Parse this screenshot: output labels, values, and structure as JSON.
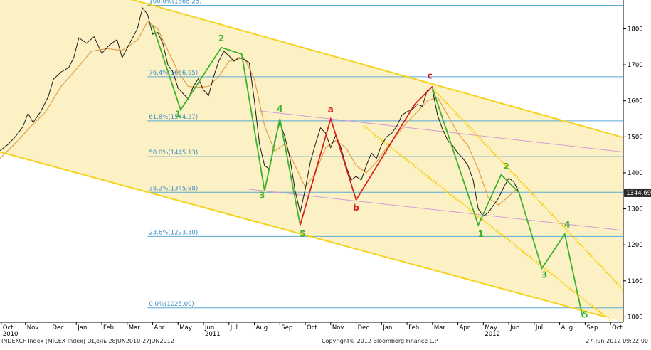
{
  "chart_data": {
    "type": "line",
    "title": "",
    "xlabel": "",
    "ylabel": "",
    "instrument": "INDEXCF Index (MICEX Index)",
    "last_value_label": "1344.69",
    "y_ticks": [
      "1000",
      "1100",
      "1200",
      "1300",
      "1400",
      "1500",
      "1600",
      "1700",
      "1800"
    ],
    "ylim": [
      985,
      1880
    ],
    "xlim": [
      0,
      24.5
    ],
    "x_ticks": [
      {
        "x": 0.05,
        "label": "Oct",
        "year": "2010"
      },
      {
        "x": 1.0,
        "label": "Nov",
        "year": ""
      },
      {
        "x": 2.0,
        "label": "Dec",
        "year": ""
      },
      {
        "x": 3.0,
        "label": "Jan",
        "year": ""
      },
      {
        "x": 4.0,
        "label": "Feb",
        "year": ""
      },
      {
        "x": 5.0,
        "label": "Mar",
        "year": ""
      },
      {
        "x": 6.0,
        "label": "Apr",
        "year": ""
      },
      {
        "x": 7.0,
        "label": "May",
        "year": ""
      },
      {
        "x": 8.0,
        "label": "Jun",
        "year": "2011"
      },
      {
        "x": 9.0,
        "label": "Jul",
        "year": ""
      },
      {
        "x": 10.0,
        "label": "Aug",
        "year": ""
      },
      {
        "x": 11.0,
        "label": "Sep",
        "year": ""
      },
      {
        "x": 12.0,
        "label": "Oct",
        "year": ""
      },
      {
        "x": 13.0,
        "label": "Nov",
        "year": ""
      },
      {
        "x": 14.0,
        "label": "Dec",
        "year": ""
      },
      {
        "x": 15.0,
        "label": "Jan",
        "year": ""
      },
      {
        "x": 16.0,
        "label": "Feb",
        "year": ""
      },
      {
        "x": 17.0,
        "label": "Mar",
        "year": ""
      },
      {
        "x": 18.0,
        "label": "Apr",
        "year": ""
      },
      {
        "x": 19.0,
        "label": "May",
        "year": "2012"
      },
      {
        "x": 20.0,
        "label": "Jun",
        "year": ""
      },
      {
        "x": 21.0,
        "label": "Jul",
        "year": ""
      },
      {
        "x": 22.0,
        "label": "Aug",
        "year": ""
      },
      {
        "x": 23.0,
        "label": "Sep",
        "year": ""
      },
      {
        "x": 24.0,
        "label": "Oct",
        "year": ""
      }
    ],
    "fib_levels": [
      {
        "label": "100.0%(1865.25)",
        "value": 1865.25
      },
      {
        "label": "76.4%(1666.95)",
        "value": 1666.95
      },
      {
        "label": "61.8%(1544.27)",
        "value": 1544.27
      },
      {
        "label": "50.0%(1445.13)",
        "value": 1445.13
      },
      {
        "label": "38.2%(1345.98)",
        "value": 1345.98
      },
      {
        "label": "23.6%(1223.30)",
        "value": 1223.3
      },
      {
        "label": "0.0%(1025.00)",
        "value": 1025.0
      }
    ],
    "fib_label_x": 5.8,
    "price_series": [
      [
        0.0,
        1462
      ],
      [
        0.3,
        1478
      ],
      [
        0.6,
        1500
      ],
      [
        0.9,
        1528
      ],
      [
        1.1,
        1565
      ],
      [
        1.3,
        1540
      ],
      [
        1.6,
        1570
      ],
      [
        1.9,
        1612
      ],
      [
        2.1,
        1660
      ],
      [
        2.4,
        1680
      ],
      [
        2.7,
        1692
      ],
      [
        2.9,
        1720
      ],
      [
        3.1,
        1775
      ],
      [
        3.4,
        1760
      ],
      [
        3.7,
        1778
      ],
      [
        4.0,
        1732
      ],
      [
        4.3,
        1755
      ],
      [
        4.6,
        1770
      ],
      [
        4.8,
        1720
      ],
      [
        5.1,
        1760
      ],
      [
        5.4,
        1800
      ],
      [
        5.6,
        1858
      ],
      [
        5.8,
        1840
      ],
      [
        6.0,
        1785
      ],
      [
        6.2,
        1790
      ],
      [
        6.4,
        1760
      ],
      [
        6.6,
        1700
      ],
      [
        6.8,
        1680
      ],
      [
        7.0,
        1635
      ],
      [
        7.2,
        1620
      ],
      [
        7.4,
        1605
      ],
      [
        7.6,
        1640
      ],
      [
        7.8,
        1662
      ],
      [
        8.0,
        1630
      ],
      [
        8.2,
        1615
      ],
      [
        8.4,
        1668
      ],
      [
        8.6,
        1710
      ],
      [
        8.8,
        1738
      ],
      [
        9.0,
        1725
      ],
      [
        9.2,
        1710
      ],
      [
        9.4,
        1720
      ],
      [
        9.6,
        1715
      ],
      [
        9.8,
        1705
      ],
      [
        10.0,
        1600
      ],
      [
        10.2,
        1480
      ],
      [
        10.4,
        1420
      ],
      [
        10.6,
        1410
      ],
      [
        10.8,
        1490
      ],
      [
        11.0,
        1540
      ],
      [
        11.2,
        1500
      ],
      [
        11.4,
        1440
      ],
      [
        11.6,
        1350
      ],
      [
        11.8,
        1290
      ],
      [
        12.0,
        1355
      ],
      [
        12.2,
        1430
      ],
      [
        12.4,
        1480
      ],
      [
        12.6,
        1525
      ],
      [
        12.8,
        1510
      ],
      [
        13.0,
        1470
      ],
      [
        13.2,
        1505
      ],
      [
        13.4,
        1470
      ],
      [
        13.6,
        1420
      ],
      [
        13.8,
        1380
      ],
      [
        14.0,
        1390
      ],
      [
        14.2,
        1380
      ],
      [
        14.4,
        1420
      ],
      [
        14.6,
        1455
      ],
      [
        14.8,
        1440
      ],
      [
        15.0,
        1478
      ],
      [
        15.2,
        1500
      ],
      [
        15.4,
        1510
      ],
      [
        15.6,
        1530
      ],
      [
        15.8,
        1560
      ],
      [
        16.0,
        1570
      ],
      [
        16.2,
        1575
      ],
      [
        16.4,
        1590
      ],
      [
        16.6,
        1585
      ],
      [
        16.8,
        1630
      ],
      [
        17.0,
        1630
      ],
      [
        17.2,
        1560
      ],
      [
        17.4,
        1520
      ],
      [
        17.6,
        1490
      ],
      [
        17.8,
        1475
      ],
      [
        18.0,
        1455
      ],
      [
        18.2,
        1440
      ],
      [
        18.4,
        1420
      ],
      [
        18.6,
        1380
      ],
      [
        18.8,
        1300
      ],
      [
        19.0,
        1280
      ],
      [
        19.2,
        1290
      ],
      [
        19.4,
        1310
      ],
      [
        19.6,
        1330
      ],
      [
        19.8,
        1360
      ],
      [
        20.0,
        1385
      ],
      [
        20.2,
        1375
      ],
      [
        20.4,
        1344.69
      ]
    ],
    "ma_series": [
      [
        0.0,
        1440
      ],
      [
        0.6,
        1482
      ],
      [
        1.2,
        1528
      ],
      [
        1.8,
        1570
      ],
      [
        2.4,
        1640
      ],
      [
        3.0,
        1688
      ],
      [
        3.6,
        1738
      ],
      [
        4.2,
        1745
      ],
      [
        4.8,
        1740
      ],
      [
        5.4,
        1768
      ],
      [
        5.8,
        1820
      ],
      [
        6.2,
        1800
      ],
      [
        6.6,
        1740
      ],
      [
        7.0,
        1680
      ],
      [
        7.4,
        1640
      ],
      [
        7.8,
        1638
      ],
      [
        8.2,
        1640
      ],
      [
        8.6,
        1668
      ],
      [
        9.0,
        1710
      ],
      [
        9.6,
        1720
      ],
      [
        10.0,
        1660
      ],
      [
        10.4,
        1530
      ],
      [
        10.8,
        1460
      ],
      [
        11.2,
        1480
      ],
      [
        11.6,
        1420
      ],
      [
        12.0,
        1360
      ],
      [
        12.4,
        1400
      ],
      [
        12.8,
        1470
      ],
      [
        13.2,
        1490
      ],
      [
        13.6,
        1470
      ],
      [
        14.0,
        1420
      ],
      [
        14.4,
        1400
      ],
      [
        14.8,
        1430
      ],
      [
        15.2,
        1470
      ],
      [
        15.6,
        1505
      ],
      [
        16.0,
        1540
      ],
      [
        16.4,
        1570
      ],
      [
        16.8,
        1600
      ],
      [
        17.2,
        1610
      ],
      [
        17.6,
        1560
      ],
      [
        18.0,
        1510
      ],
      [
        18.4,
        1475
      ],
      [
        18.8,
        1410
      ],
      [
        19.2,
        1330
      ],
      [
        19.6,
        1310
      ],
      [
        20.0,
        1335
      ],
      [
        20.4,
        1360
      ]
    ],
    "channel_outer_upper": [
      [
        5.0,
        1885
      ],
      [
        24.5,
        1498
      ]
    ],
    "channel_outer_lower": [
      [
        0.0,
        1458
      ],
      [
        23.8,
        1000
      ]
    ],
    "channel_mid_upper": [
      [
        10.2,
        1572
      ],
      [
        24.5,
        1458
      ]
    ],
    "channel_mid_lower": [
      [
        9.6,
        1356
      ],
      [
        24.5,
        1240
      ]
    ],
    "channel_right_upper": [
      [
        17.0,
        1635
      ],
      [
        24.5,
        1075
      ]
    ],
    "channel_right_lower": [
      [
        14.3,
        1530
      ],
      [
        24.0,
        990
      ]
    ],
    "green_waves": [
      [
        [
          6.0,
          1810
        ],
        [
          7.1,
          1575
        ],
        [
          8.7,
          1748
        ],
        [
          9.5,
          1730
        ],
        [
          10.4,
          1350
        ],
        [
          11.0,
          1550
        ],
        [
          11.8,
          1255
        ]
      ],
      [
        [
          17.0,
          1635
        ],
        [
          18.8,
          1255
        ],
        [
          19.7,
          1395
        ],
        [
          20.4,
          1345
        ],
        [
          21.3,
          1135
        ],
        [
          22.2,
          1230
        ],
        [
          22.9,
          1000
        ]
      ]
    ],
    "red_wave": [
      [
        11.8,
        1255
      ],
      [
        13.0,
        1550
      ],
      [
        14.0,
        1325
      ],
      [
        16.3,
        1590
      ],
      [
        17.0,
        1640
      ]
    ],
    "wave_labels": [
      {
        "text": "1",
        "color": "green",
        "x": 7.0,
        "y": 1555
      },
      {
        "text": "2",
        "color": "green",
        "x": 8.7,
        "y": 1765
      },
      {
        "text": "3",
        "color": "green",
        "x": 10.3,
        "y": 1330
      },
      {
        "text": "4",
        "color": "green",
        "x": 11.0,
        "y": 1570
      },
      {
        "text": "5",
        "color": "green",
        "x": 11.9,
        "y": 1222
      },
      {
        "text": "a",
        "color": "red",
        "x": 13.0,
        "y": 1568
      },
      {
        "text": "b",
        "color": "red",
        "x": 14.0,
        "y": 1295
      },
      {
        "text": "c",
        "color": "red",
        "x": 16.9,
        "y": 1662
      },
      {
        "text": "1",
        "color": "green",
        "x": 18.9,
        "y": 1222
      },
      {
        "text": "2",
        "color": "green",
        "x": 19.9,
        "y": 1410
      },
      {
        "text": "3",
        "color": "green",
        "x": 21.4,
        "y": 1108
      },
      {
        "text": "4",
        "color": "green",
        "x": 22.3,
        "y": 1248
      },
      {
        "text": "5",
        "color": "green",
        "x": 23.0,
        "y": 998
      }
    ],
    "grid": false,
    "legend": "none"
  },
  "footer": {
    "left": "INDEXCF Index (MICEX Index) ОДень 28JUN2010-27JUN2012",
    "center": "Copyright© 2012 Bloomberg Finance L.P.",
    "right": "27-Jun-2012 09:22:00"
  },
  "colors": {
    "fill": "#fbf1c4",
    "channel": "#f6d21c",
    "fib_line": "#5aa9d6",
    "fib_text": "#3f8fc4",
    "wave_green": "#3db22d",
    "wave_red": "#d92323",
    "ma": "#e2a04a",
    "price": "#1b1b1b",
    "mid_channel": "#d59ad8"
  }
}
